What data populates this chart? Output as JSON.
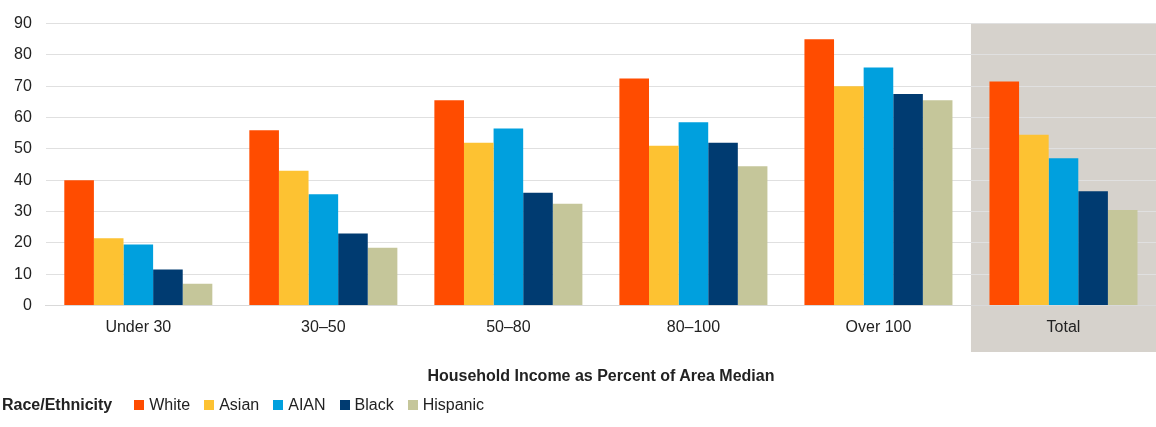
{
  "chart_data": {
    "type": "bar",
    "xlabel": "Household Income as Percent of Area Median",
    "legend_title": "Race/Ethnicity",
    "categories": [
      "Under 30",
      "30–50",
      "50–80",
      "80–100",
      "Over 100",
      "Total"
    ],
    "series": [
      {
        "name": "White",
        "color": "#ff4c00",
        "values": [
          40,
          56,
          65.5,
          72.5,
          85,
          71.5
        ]
      },
      {
        "name": "Asian",
        "color": "#fdc232",
        "values": [
          21.5,
          43,
          52,
          51,
          70,
          54.5
        ]
      },
      {
        "name": "AIAN",
        "color": "#00a0de",
        "values": [
          19.5,
          35.5,
          56.5,
          58.5,
          76,
          47
        ]
      },
      {
        "name": "Black",
        "color": "#003b71",
        "values": [
          11.5,
          23,
          36,
          52,
          67.5,
          36.5
        ]
      },
      {
        "name": "Hispanic",
        "color": "#c5c69a",
        "values": [
          7,
          18.5,
          32.5,
          44.5,
          65.5,
          30.5
        ]
      }
    ],
    "ylim": [
      0,
      90
    ],
    "yticks": [
      0,
      10,
      20,
      30,
      40,
      50,
      60,
      70,
      80,
      90
    ],
    "grid": "y",
    "legend": "bottom left",
    "bands": [
      {
        "axis": "x",
        "from": "Total",
        "to": "Total",
        "color": "#d6d2cc"
      }
    ]
  }
}
